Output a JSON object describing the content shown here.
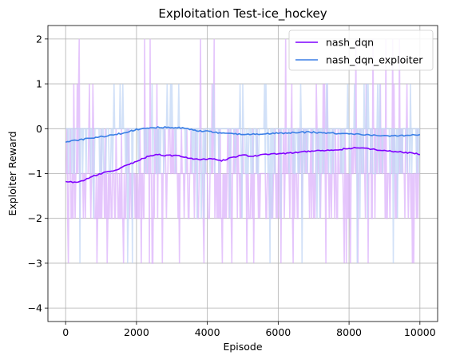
{
  "chart_data": {
    "type": "line",
    "title": "Exploitation Test-ice_hockey",
    "xlabel": "Episode",
    "ylabel": "Exploiter Reward",
    "xlim": [
      -500,
      10500
    ],
    "ylim": [
      -4.3,
      2.3
    ],
    "xticks": [
      0,
      2000,
      4000,
      6000,
      8000,
      10000
    ],
    "yticks": [
      -4,
      -3,
      -2,
      -1,
      0,
      1,
      2
    ],
    "grid": true,
    "legend_position": "upper right",
    "series": [
      {
        "name": "nash_dqn",
        "color": "#7f00ff",
        "raw_color": "#dcb3fb",
        "smoothed": {
          "x": [
            0,
            200,
            400,
            600,
            800,
            1000,
            1200,
            1400,
            1600,
            1800,
            2000,
            2200,
            2400,
            2600,
            2800,
            3000,
            3200,
            3400,
            3600,
            3800,
            4000,
            4200,
            4400,
            4600,
            4800,
            5000,
            5200,
            5400,
            5600,
            5800,
            6000,
            6200,
            6400,
            6600,
            6800,
            7000,
            7200,
            7400,
            7600,
            7800,
            8000,
            8200,
            8400,
            8600,
            8800,
            9000,
            9200,
            9400,
            9600,
            9800,
            10000
          ],
          "y": [
            -1.17,
            -1.2,
            -1.18,
            -1.12,
            -1.05,
            -1.0,
            -0.96,
            -0.92,
            -0.86,
            -0.8,
            -0.73,
            -0.66,
            -0.6,
            -0.57,
            -0.6,
            -0.6,
            -0.6,
            -0.64,
            -0.67,
            -0.69,
            -0.68,
            -0.67,
            -0.71,
            -0.67,
            -0.62,
            -0.58,
            -0.61,
            -0.6,
            -0.58,
            -0.57,
            -0.56,
            -0.55,
            -0.54,
            -0.52,
            -0.51,
            -0.5,
            -0.49,
            -0.49,
            -0.47,
            -0.46,
            -0.44,
            -0.43,
            -0.44,
            -0.45,
            -0.47,
            -0.49,
            -0.5,
            -0.51,
            -0.53,
            -0.55,
            -0.57
          ]
        }
      },
      {
        "name": "nash_dqn_exploiter",
        "color": "#3a7fe6",
        "raw_color": "#c3d7f5",
        "smoothed": {
          "x": [
            0,
            200,
            400,
            600,
            800,
            1000,
            1200,
            1400,
            1600,
            1800,
            2000,
            2200,
            2400,
            2600,
            2800,
            3000,
            3200,
            3400,
            3600,
            3800,
            4000,
            4200,
            4400,
            4600,
            4800,
            5000,
            5200,
            5400,
            5600,
            5800,
            6000,
            6200,
            6400,
            6600,
            6800,
            7000,
            7200,
            7400,
            7600,
            7800,
            8000,
            8200,
            8400,
            8600,
            8800,
            9000,
            9200,
            9400,
            9600,
            9800,
            10000
          ],
          "y": [
            -0.29,
            -0.27,
            -0.25,
            -0.22,
            -0.2,
            -0.18,
            -0.16,
            -0.13,
            -0.1,
            -0.06,
            -0.02,
            0.0,
            0.02,
            0.03,
            0.03,
            0.03,
            0.02,
            0.0,
            -0.03,
            -0.05,
            -0.06,
            -0.08,
            -0.1,
            -0.1,
            -0.12,
            -0.12,
            -0.13,
            -0.12,
            -0.11,
            -0.11,
            -0.1,
            -0.1,
            -0.09,
            -0.08,
            -0.08,
            -0.08,
            -0.09,
            -0.1,
            -0.1,
            -0.11,
            -0.12,
            -0.12,
            -0.13,
            -0.14,
            -0.15,
            -0.16,
            -0.16,
            -0.16,
            -0.15,
            -0.14,
            -0.14
          ]
        }
      }
    ]
  }
}
